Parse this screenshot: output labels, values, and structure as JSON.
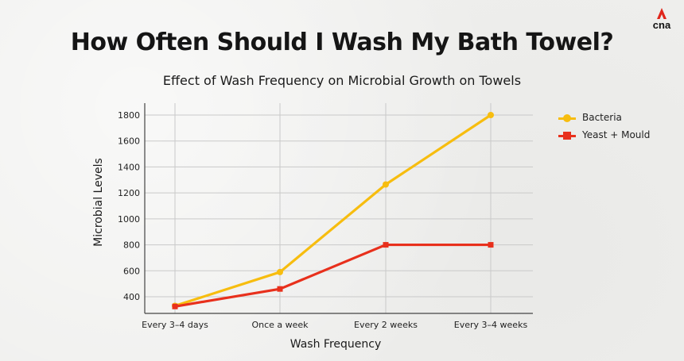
{
  "header": {
    "title": "How Often Should I Wash My Bath Towel?",
    "logo_text": "cna"
  },
  "colors": {
    "bacteria": "#f7bd0f",
    "yeast_mould": "#e8301c",
    "logo_red": "#e0261b"
  },
  "chart_data": {
    "type": "line",
    "title": "Effect of Wash Frequency on Microbial Growth on Towels",
    "xlabel": "Wash Frequency",
    "ylabel": "Microbial Levels",
    "categories": [
      "Every 3–4 days",
      "Once a week",
      "Every 2 weeks",
      "Every 3–4 weeks"
    ],
    "yticks": [
      400,
      600,
      800,
      1000,
      1200,
      1400,
      1600,
      1800
    ],
    "ylim": [
      300,
      1850
    ],
    "grid": true,
    "legend_position": "right",
    "series": [
      {
        "name": "Bacteria",
        "values": [
          330,
          590,
          1265,
          1800
        ],
        "marker": "circle"
      },
      {
        "name": "Yeast + Mould",
        "values": [
          325,
          460,
          800,
          800
        ],
        "marker": "square"
      }
    ]
  }
}
